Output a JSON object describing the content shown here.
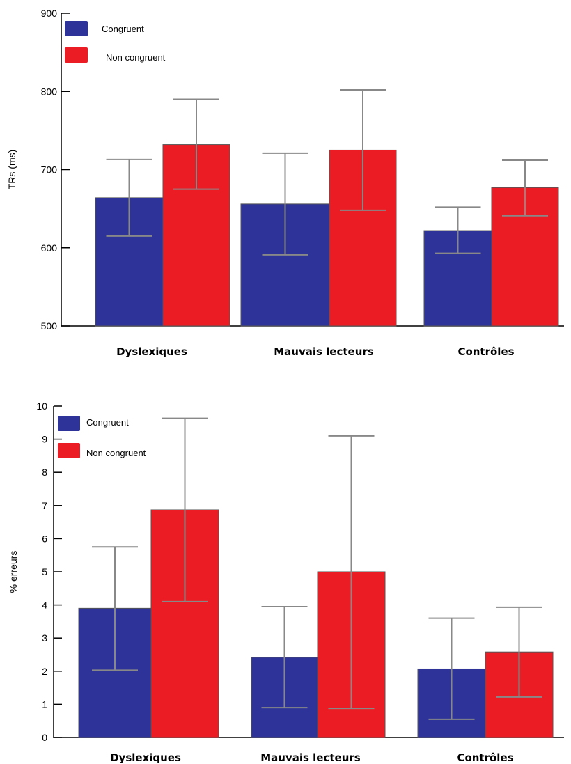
{
  "colors": {
    "congruent": "#2e3399",
    "non_congruent": "#ec1c24",
    "error_bar": "#888888"
  },
  "chart_data": [
    {
      "type": "bar",
      "ylabel": "TRs (ms)",
      "xlabel": "",
      "ylim": [
        500,
        900
      ],
      "yticks": [
        "500",
        "600",
        "700",
        "800",
        "900"
      ],
      "categories": [
        "Dyslexiques",
        "Mauvais lecteurs",
        "Contrôles"
      ],
      "legend_position": "top-left",
      "series": [
        {
          "name": "Congruent",
          "values": [
            664,
            656,
            622
          ],
          "err_low": [
            615,
            591,
            593
          ],
          "err_high": [
            713,
            721,
            652
          ]
        },
        {
          "name": "Non congruent",
          "values": [
            732,
            725,
            677
          ],
          "err_low": [
            675,
            648,
            641
          ],
          "err_high": [
            790,
            802,
            712
          ]
        }
      ]
    },
    {
      "type": "bar",
      "ylabel": "% erreurs",
      "xlabel": "",
      "ylim": [
        0,
        10
      ],
      "yticks": [
        "0",
        "1",
        "2",
        "3",
        "4",
        "5",
        "6",
        "7",
        "8",
        "9",
        "10"
      ],
      "categories": [
        "Dyslexiques",
        "Mauvais lecteurs",
        "Contrôles"
      ],
      "legend_position": "top-left",
      "series": [
        {
          "name": "Congruent",
          "values": [
            3.9,
            2.42,
            2.07
          ],
          "err_low": [
            2.03,
            0.9,
            0.55
          ],
          "err_high": [
            5.75,
            3.95,
            3.6
          ]
        },
        {
          "name": "Non congruent",
          "values": [
            6.87,
            5.0,
            2.58
          ],
          "err_low": [
            4.1,
            0.88,
            1.22
          ],
          "err_high": [
            9.63,
            9.1,
            3.93
          ]
        }
      ]
    }
  ]
}
